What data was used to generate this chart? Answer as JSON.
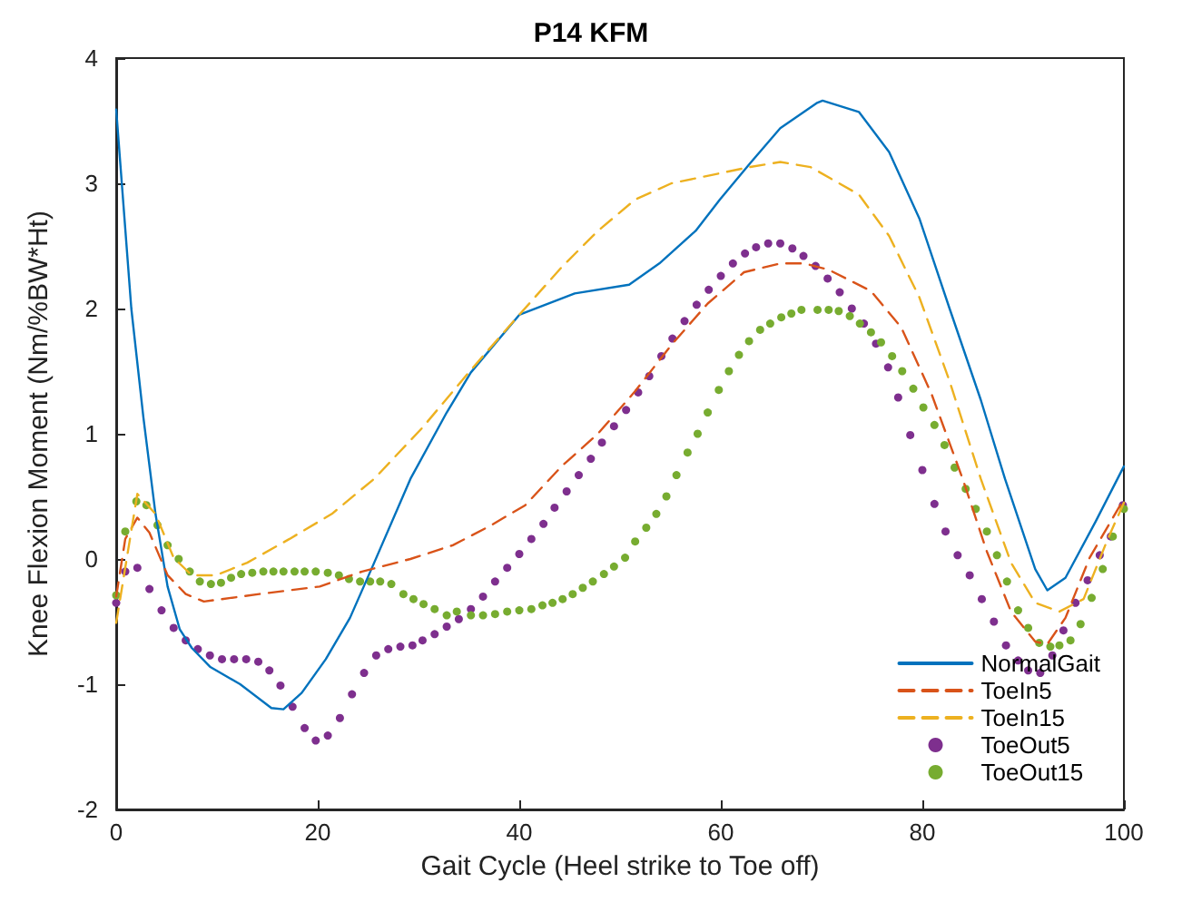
{
  "chart_data": {
    "type": "line",
    "title": "P14 KFM",
    "xlabel": "Gait Cycle (Heel strike to Toe off)",
    "ylabel": "Knee Flexion Moment (Nm/%BW*Ht)",
    "xlim": [
      0,
      100
    ],
    "xticks": [
      0,
      20,
      40,
      60,
      80,
      100
    ],
    "ylim": [
      -2,
      4
    ],
    "yticks": [
      -2,
      -1,
      0,
      1,
      2,
      3,
      4
    ],
    "grid": false,
    "legend": "bottom right",
    "marker": "none",
    "series": [
      {
        "name": "NormalGait",
        "line_style": "solid",
        "color": "#0072bd",
        "x": [
          0,
          1.5,
          2.7,
          3.9,
          5.1,
          6.3,
          7.5,
          9.3,
          12.3,
          15.4,
          16.6,
          18.4,
          20.8,
          23.2,
          25.6,
          29.2,
          32.8,
          35.2,
          40,
          45.5,
          50.9,
          53.9,
          57.5,
          59.9,
          62.9,
          65.9,
          69.5,
          70.1,
          73.7,
          76.7,
          79.7,
          82.7,
          85.8,
          88.2,
          91.2,
          92.4,
          94.2,
          97.2,
          100
        ],
        "values": [
          3.59,
          2.0,
          1.13,
          0.36,
          -0.22,
          -0.56,
          -0.71,
          -0.86,
          -1.0,
          -1.19,
          -1.2,
          -1.07,
          -0.8,
          -0.47,
          -0.03,
          0.64,
          1.17,
          1.49,
          1.95,
          2.12,
          2.19,
          2.36,
          2.62,
          2.87,
          3.16,
          3.44,
          3.64,
          3.66,
          3.57,
          3.25,
          2.72,
          2.0,
          1.27,
          0.64,
          -0.08,
          -0.25,
          -0.15,
          0.3,
          0.74
        ]
      },
      {
        "name": "ToeIn5",
        "line_style": "dashed",
        "color": "#d95319",
        "x": [
          0,
          0.9,
          2.1,
          3.3,
          5.1,
          6.9,
          8.7,
          14.2,
          20.2,
          24.4,
          29.2,
          33.4,
          37,
          40.6,
          44.2,
          47.8,
          51.5,
          55.1,
          58.7,
          62.3,
          65.9,
          68.3,
          70.7,
          74.9,
          77.9,
          80.9,
          84,
          86.4,
          88.8,
          91.2,
          92.4,
          94.2,
          96.6,
          100
        ],
        "values": [
          -0.3,
          0.16,
          0.33,
          0.21,
          -0.13,
          -0.28,
          -0.34,
          -0.28,
          -0.22,
          -0.1,
          0,
          0.11,
          0.26,
          0.43,
          0.74,
          1.0,
          1.34,
          1.71,
          2.04,
          2.29,
          2.36,
          2.36,
          2.31,
          2.14,
          1.85,
          1.32,
          0.64,
          0.06,
          -0.42,
          -0.66,
          -0.68,
          -0.47,
          0.01,
          0.48
        ]
      },
      {
        "name": "ToeIn15",
        "line_style": "dashed",
        "color": "#edb120",
        "x": [
          0,
          2.1,
          3.9,
          5.7,
          7.5,
          9.9,
          13,
          17.2,
          21.4,
          25.6,
          30.4,
          35.2,
          40,
          44.2,
          47.8,
          51.5,
          55.1,
          59.9,
          62.9,
          65.9,
          68.9,
          73.7,
          76.7,
          79.7,
          82.7,
          85.8,
          88.8,
          91.2,
          93.6,
          96,
          98.4,
          100
        ],
        "values": [
          -0.51,
          0.52,
          0.36,
          0.01,
          -0.13,
          -0.13,
          -0.03,
          0.16,
          0.36,
          0.64,
          1.05,
          1.51,
          1.95,
          2.33,
          2.62,
          2.87,
          3.0,
          3.08,
          3.13,
          3.17,
          3.13,
          2.91,
          2.58,
          2.09,
          1.42,
          0.64,
          -0.03,
          -0.35,
          -0.42,
          -0.32,
          0.16,
          0.45
        ]
      },
      {
        "name": "ToeOut5",
        "type": "scatter",
        "marker": "circle",
        "color": "#7e2f8e",
        "x": [
          0,
          0.9,
          2.1,
          3.3,
          4.5,
          5.7,
          6.9,
          8.1,
          9.3,
          10.5,
          11.7,
          12.9,
          14.1,
          15.2,
          16.3,
          17.5,
          18.7,
          19.8,
          21,
          22.2,
          23.4,
          24.6,
          25.8,
          27,
          28.2,
          29.4,
          30.4,
          31.6,
          32.8,
          34,
          35.2,
          36.4,
          37.6,
          38.8,
          40,
          41.2,
          42.4,
          43.5,
          44.7,
          45.9,
          47.1,
          48.2,
          49.4,
          50.6,
          51.8,
          52.9,
          54.1,
          55.2,
          56.4,
          57.6,
          58.8,
          60,
          61.2,
          62.4,
          63.5,
          64.7,
          65.9,
          67.1,
          68.2,
          69.4,
          70.6,
          71.8,
          73,
          74.2,
          75.4,
          76.6,
          77.6,
          78.8,
          80,
          81.2,
          82.3,
          83.5,
          84.7,
          85.9,
          87.1,
          88.3,
          89.5,
          90.5,
          91.7,
          92.9,
          94,
          95.2,
          96.4,
          97.6,
          98.7,
          99.9
        ],
        "values": [
          -0.35,
          -0.1,
          -0.07,
          -0.24,
          -0.41,
          -0.55,
          -0.65,
          -0.72,
          -0.77,
          -0.8,
          -0.8,
          -0.8,
          -0.82,
          -0.89,
          -1.01,
          -1.18,
          -1.35,
          -1.45,
          -1.41,
          -1.27,
          -1.08,
          -0.91,
          -0.77,
          -0.72,
          -0.7,
          -0.69,
          -0.65,
          -0.6,
          -0.54,
          -0.48,
          -0.4,
          -0.3,
          -0.18,
          -0.07,
          0.04,
          0.16,
          0.28,
          0.41,
          0.54,
          0.67,
          0.8,
          0.93,
          1.06,
          1.19,
          1.33,
          1.46,
          1.62,
          1.76,
          1.9,
          2.03,
          2.15,
          2.26,
          2.36,
          2.44,
          2.49,
          2.52,
          2.52,
          2.48,
          2.42,
          2.34,
          2.24,
          2.13,
          2.0,
          1.88,
          1.72,
          1.53,
          1.29,
          0.99,
          0.71,
          0.44,
          0.22,
          0.03,
          -0.13,
          -0.32,
          -0.5,
          -0.69,
          -0.81,
          -0.89,
          -0.91,
          -0.77,
          -0.57,
          -0.35,
          -0.17,
          0.03,
          0.18,
          0.43
        ]
      },
      {
        "name": "ToeOut15",
        "type": "scatter",
        "marker": "circle",
        "color": "#77ac30",
        "x": [
          0,
          0.9,
          2,
          3,
          4.1,
          5.1,
          6.2,
          7.3,
          8.3,
          9.4,
          10.4,
          11.4,
          12.4,
          13.5,
          14.6,
          15.6,
          16.6,
          17.7,
          18.7,
          19.8,
          21,
          22.1,
          23.1,
          24.2,
          25.2,
          26.2,
          27.3,
          28.5,
          29.5,
          30.5,
          31.6,
          32.8,
          33.8,
          35.2,
          36.4,
          37.6,
          38.8,
          40,
          41.2,
          42.3,
          43.3,
          44.3,
          45.3,
          46.3,
          47.3,
          48.4,
          49.4,
          50.5,
          51.5,
          52.6,
          53.6,
          54.6,
          55.6,
          56.7,
          57.7,
          58.7,
          59.8,
          60.8,
          61.8,
          62.8,
          63.9,
          64.9,
          66,
          67,
          68,
          69.6,
          70.7,
          71.7,
          72.8,
          73.8,
          74.9,
          75.9,
          77,
          78,
          79.1,
          80.1,
          81.2,
          82.2,
          83.2,
          84.3,
          85.3,
          86.4,
          87.4,
          88.4,
          89.5,
          90.5,
          91.6,
          92.7,
          93.6,
          94.7,
          95.7,
          96.8,
          97.9,
          98.9,
          100
        ],
        "values": [
          -0.29,
          0.22,
          0.46,
          0.43,
          0.27,
          0.11,
          0,
          -0.1,
          -0.18,
          -0.2,
          -0.19,
          -0.15,
          -0.12,
          -0.11,
          -0.1,
          -0.1,
          -0.1,
          -0.1,
          -0.1,
          -0.1,
          -0.11,
          -0.13,
          -0.16,
          -0.18,
          -0.18,
          -0.18,
          -0.2,
          -0.28,
          -0.32,
          -0.36,
          -0.4,
          -0.45,
          -0.42,
          -0.45,
          -0.45,
          -0.44,
          -0.42,
          -0.41,
          -0.4,
          -0.37,
          -0.35,
          -0.32,
          -0.28,
          -0.23,
          -0.18,
          -0.12,
          -0.06,
          0.01,
          0.14,
          0.25,
          0.36,
          0.5,
          0.67,
          0.85,
          1.0,
          1.17,
          1.35,
          1.5,
          1.63,
          1.74,
          1.83,
          1.88,
          1.93,
          1.96,
          1.99,
          1.99,
          1.99,
          1.98,
          1.94,
          1.88,
          1.81,
          1.73,
          1.62,
          1.5,
          1.36,
          1.21,
          1.07,
          0.91,
          0.73,
          0.56,
          0.4,
          0.22,
          0.03,
          -0.18,
          -0.41,
          -0.55,
          -0.67,
          -0.7,
          -0.69,
          -0.65,
          -0.52,
          -0.31,
          -0.08,
          0.18,
          0.4
        ]
      }
    ]
  }
}
